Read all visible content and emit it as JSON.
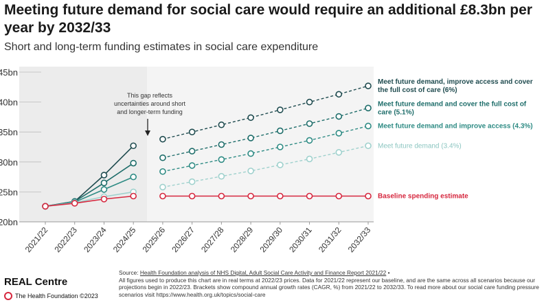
{
  "title": "Meeting future demand for social care would require an additional £8.3bn per year by 2032/33",
  "subtitle": "Short and long-term funding estimates in social care expenditure",
  "annotation": {
    "lines": [
      "This gap reflects",
      "uncertainties around short",
      "and longer-term funding"
    ]
  },
  "footer": {
    "brand": "REAL Centre",
    "org": "The Health Foundation ©2023",
    "source_prefix": "Source: ",
    "source_link": "Health Foundation analysis of NHS Digital, Adult Social Care Activity and Finance Report 2021/22",
    "source_suffix": " •",
    "notes": "All figures used to produce this chart are in real terms at 2022/23 prices. Data for 2021/22 represent our baseline, and are the same across all scenarios because our projections begin in 2022/23. Brackets show compound annual growth rates (CAGR, %) from 2021/22 to 2032/33. To read more about our social care funding pressure scenarios visit https://www.health.org.uk/topics/social-care"
  },
  "chart_data": {
    "type": "line",
    "title": "Meeting future demand for social care would require an additional £8.3bn per year by 2032/33",
    "subtitle": "Short and long-term funding estimates in social care expenditure",
    "x": [
      "2021/22",
      "2022/23",
      "2023/24",
      "2024/25",
      "2025/26",
      "2026/27",
      "2027/28",
      "2028/29",
      "2029/30",
      "2030/31",
      "2031/32",
      "2032/33"
    ],
    "ylim": [
      20,
      45
    ],
    "yticks": [
      20,
      25,
      30,
      35,
      40,
      45
    ],
    "ytick_labels": [
      "£20bn",
      "£25bn",
      "£30bn",
      "£35bn",
      "£40bn",
      "£45bn"
    ],
    "short_term_shaded": [
      "2021/22",
      "2024/25"
    ],
    "grid": false,
    "series": [
      {
        "name": "Meet future demand, improve access and cover the full cost of care (6%)",
        "label_lines": [
          "Meet future demand, improve access and cover",
          "the full cost of care (6%)"
        ],
        "color": "#1f4b4f",
        "short_term": [
          22.6,
          23.4,
          27.8,
          32.7
        ],
        "long_term": [
          33.8,
          35.0,
          36.2,
          37.4,
          38.7,
          40.0,
          41.3,
          42.7
        ]
      },
      {
        "name": "Meet future demand and cover the full cost of care (5.1%)",
        "label_lines": [
          "Meet future demand and cover the full cost of",
          "care (5.1%)"
        ],
        "color": "#1e6d6a",
        "short_term": [
          22.6,
          23.4,
          26.5,
          29.8
        ],
        "long_term": [
          30.7,
          31.8,
          32.9,
          34.0,
          35.2,
          36.4,
          37.6,
          39.0
        ]
      },
      {
        "name": "Meet future demand and improve access (4.3%)",
        "label_lines": [
          "Meet future demand and improve access (4.3%)"
        ],
        "color": "#2e8b84",
        "short_term": [
          22.6,
          23.3,
          25.4,
          27.5
        ],
        "long_term": [
          28.4,
          29.4,
          30.4,
          31.4,
          32.5,
          33.6,
          34.8,
          36.0
        ]
      },
      {
        "name": "Meet future demand (3.4%)",
        "label_lines": [
          "Meet future demand (3.4%)"
        ],
        "color": "#9fd1cd",
        "short_term": [
          22.6,
          23.2,
          24.2,
          25.0
        ],
        "long_term": [
          25.8,
          26.7,
          27.6,
          28.5,
          29.5,
          30.5,
          31.6,
          32.7
        ]
      },
      {
        "name": "Baseline spending estimate",
        "label_lines": [
          "Baseline spending estimate"
        ],
        "color": "#d6273e",
        "short_term": [
          22.6,
          23.1,
          23.8,
          24.3
        ],
        "long_term": [
          24.3,
          24.3,
          24.3,
          24.3,
          24.3,
          24.3,
          24.3,
          24.3
        ]
      }
    ]
  }
}
